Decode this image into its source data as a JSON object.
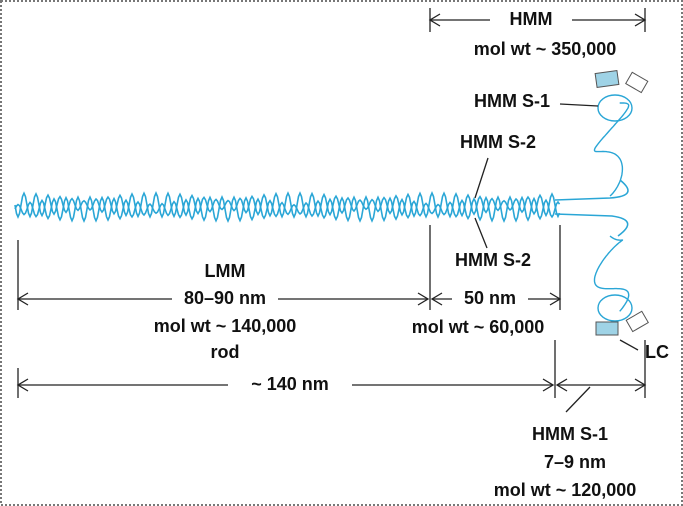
{
  "hmm": {
    "title": "HMM",
    "mol_wt": "mol wt ~ 350,000"
  },
  "s1_top": "HMM S-1",
  "s2_top": "HMM S-2",
  "s2_bottom": "HMM S-2",
  "lmm": {
    "title": "LMM",
    "length": "80–90 nm",
    "mol_wt": "mol wt ~ 140,000",
    "extra": "rod"
  },
  "s2_segment": {
    "length": "50 nm",
    "mol_wt": "mol wt ~ 60,000"
  },
  "light_chain": "LC",
  "total": "~ 140 nm",
  "s1_segment": {
    "title": "HMM S-1",
    "length": "7–9 nm",
    "mol_wt": "mol wt ~ 120,000"
  }
}
